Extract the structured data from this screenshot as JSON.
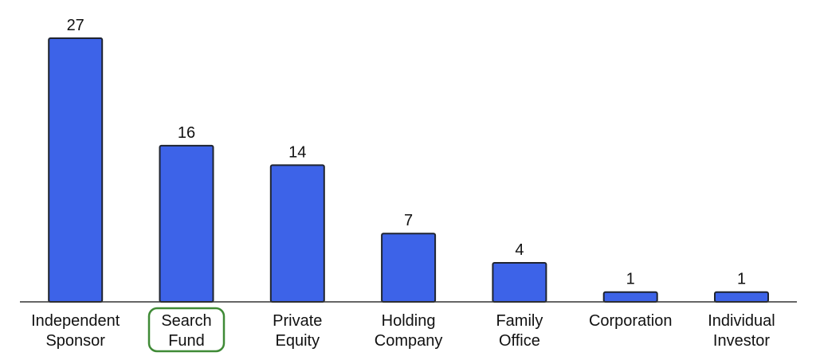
{
  "chart_data": {
    "type": "bar",
    "categories": [
      [
        "Independent",
        "Sponsor"
      ],
      [
        "Search",
        "Fund"
      ],
      [
        "Private",
        "Equity"
      ],
      [
        "Holding",
        "Company"
      ],
      [
        "Family",
        "Office"
      ],
      [
        "Corporation"
      ],
      [
        "Individual",
        "Investor"
      ]
    ],
    "values": [
      27,
      16,
      14,
      7,
      4,
      1,
      1
    ],
    "data_labels": [
      "27",
      "16",
      "14",
      "7",
      "4",
      "1",
      "1"
    ],
    "title": "",
    "xlabel": "",
    "ylabel": "",
    "ylim": [
      0,
      27
    ],
    "grid": false,
    "legend": "none",
    "highlighted_category_index": 1
  },
  "colors": {
    "bar_fill": "#3d63e8",
    "bar_stroke": "#1f2430",
    "highlight": "#3f8a36",
    "text": "#111111"
  }
}
